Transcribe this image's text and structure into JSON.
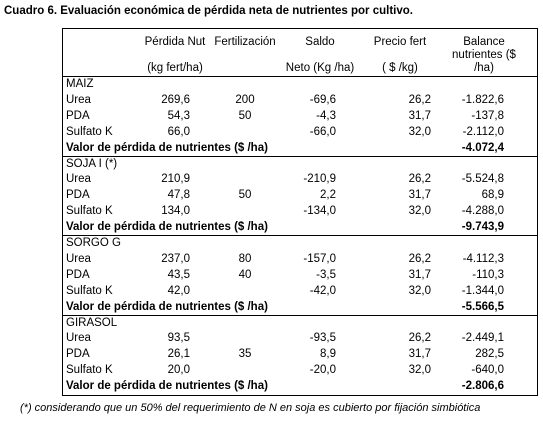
{
  "title": "Cuadro 6.  Evaluación económica de pérdida neta de nutrientes por cultivo.",
  "header": [
    [
      "Pérdida Nut",
      "(kg fert/ha)"
    ],
    [
      "Fertilización"
    ],
    [
      "Saldo",
      "Neto (Kg /ha)"
    ],
    [
      "Precio fert",
      "( $ /kg)"
    ],
    [
      "Balance",
      "nutrientes ($",
      "/ha)"
    ]
  ],
  "groups": [
    {
      "name": "MAIZ",
      "rows": [
        [
          "Urea",
          "269,6",
          "200",
          "-69,6",
          "26,2",
          "-1.822,6"
        ],
        [
          "PDA",
          "54,3",
          "50",
          "-4,3",
          "31,7",
          "-137,8"
        ],
        [
          "Sulfato K",
          "66,0",
          null,
          "-66,0",
          "32,0",
          "-2.112,0"
        ]
      ],
      "total_label": "Valor de pérdida de nutrientes ($ /ha)",
      "total": "-4.072,4"
    },
    {
      "name": "SOJA I (*)",
      "rows": [
        [
          "Urea",
          "210,9",
          null,
          "-210,9",
          "26,2",
          "-5.524,8"
        ],
        [
          "PDA",
          "47,8",
          "50",
          "2,2",
          "31,7",
          "68,9"
        ],
        [
          "Sulfato K",
          "134,0",
          null,
          "-134,0",
          "32,0",
          "-4.288,0"
        ]
      ],
      "total_label": "Valor de pérdida de nutrientes ($ /ha)",
      "total": "-9.743,9"
    },
    {
      "name": "SORGO G",
      "rows": [
        [
          "Urea",
          "237,0",
          "80",
          "-157,0",
          "26,2",
          "-4.112,3"
        ],
        [
          "PDA",
          "43,5",
          "40",
          "-3,5",
          "31,7",
          "-110,3"
        ],
        [
          "Sulfato K",
          "42,0",
          null,
          "-42,0",
          "32,0",
          "-1.344,0"
        ]
      ],
      "total_label": "Valor de pérdida de nutrientes ($ /ha)",
      "total": "-5.566,5"
    },
    {
      "name": "GIRASOL",
      "rows": [
        [
          "Urea",
          "93,5",
          null,
          "-93,5",
          "26,2",
          "-2.449,1"
        ],
        [
          "PDA",
          "26,1",
          "35",
          "8,9",
          "31,7",
          "282,5"
        ],
        [
          "Sulfato K",
          "20,0",
          null,
          "-20,0",
          "32,0",
          "-640,0"
        ]
      ],
      "total_label": "Valor de pérdida de nutrientes ($ /ha)",
      "total": "-2.806,6"
    }
  ],
  "footnote": "(*) considerando que un 50% del requerimiento de N  en soja es cubierto por fijación simbiótica"
}
